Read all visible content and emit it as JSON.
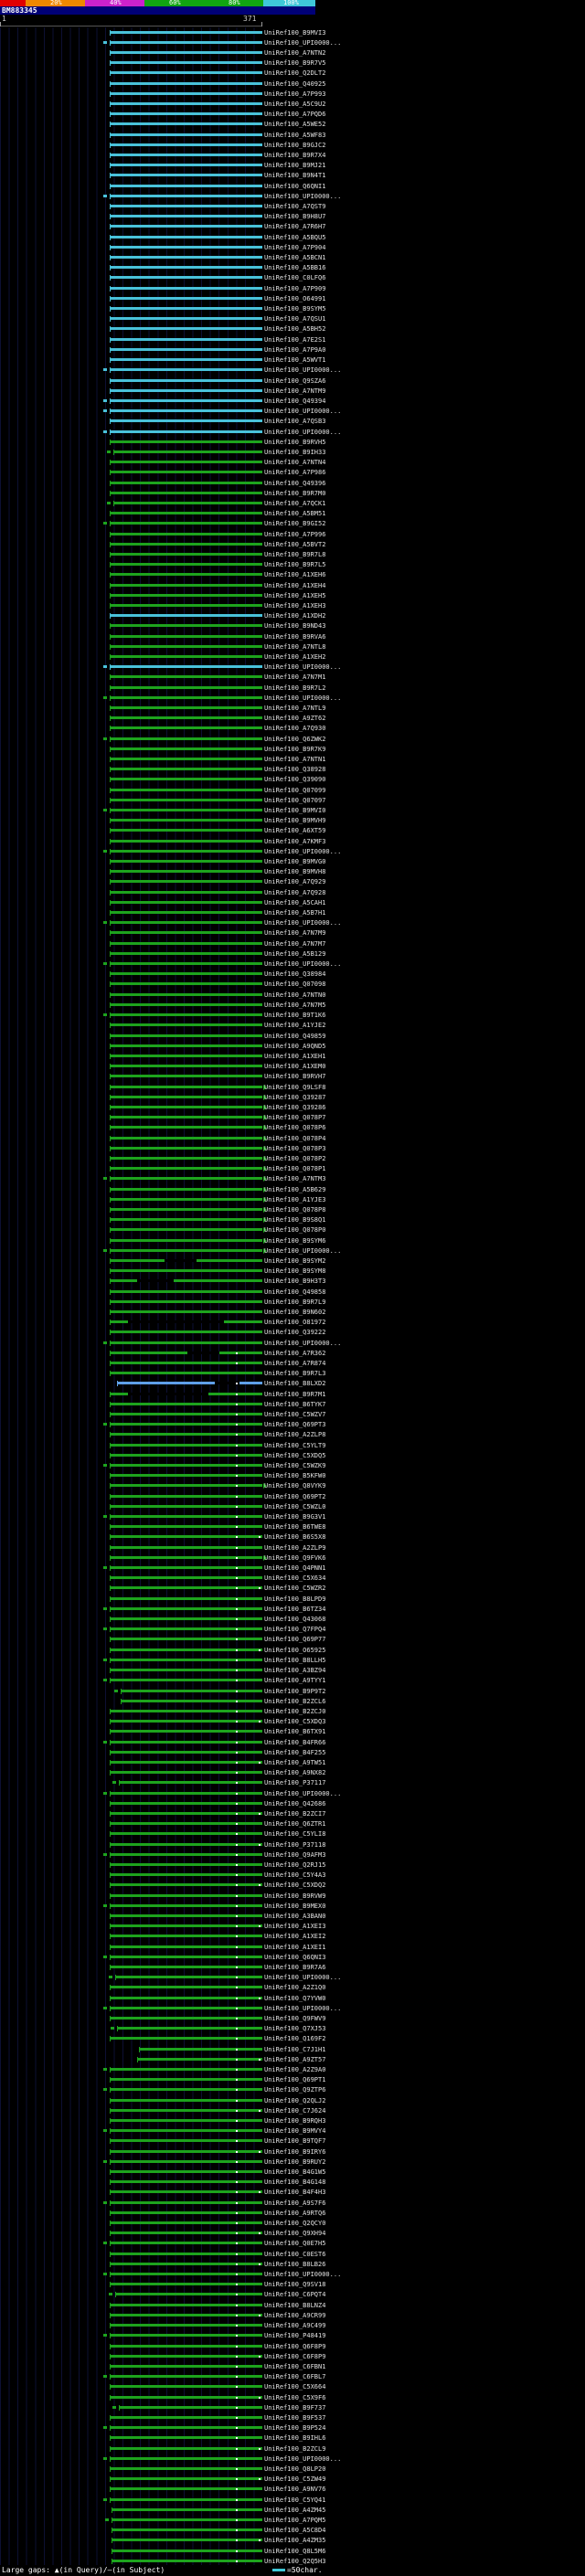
{
  "scalebar": {
    "labels": [
      "20%",
      "40%",
      "60%",
      "80%",
      "100%"
    ],
    "label_positions": [
      55,
      120,
      185,
      250,
      310
    ],
    "segments": [
      {
        "range": "0-20",
        "color": "#e10000",
        "w": 28
      },
      {
        "range": "20-40",
        "color": "#ef8800",
        "w": 65
      },
      {
        "range": "40-60",
        "color": "#cc22cc",
        "w": 65
      },
      {
        "range": "60-80",
        "color": "#11a511",
        "w": 130
      },
      {
        "range": "80-100",
        "color": "#3fc8d8",
        "w": 57
      }
    ]
  },
  "query": {
    "id": "BM883345",
    "band_color": "#000077"
  },
  "ruler": {
    "start_label": "1",
    "end_label": "371"
  },
  "legend": {
    "gaps_text": "Large gaps: ▲(in Query)/—(in Subject)",
    "scale_text": "=50char.",
    "scale_color": "#3fc8d8"
  },
  "colors": {
    "c": "#49c2da",
    "g": "#1da31d",
    "b": "#5f9fe8"
  },
  "defaults": {
    "start": 120,
    "end": 287,
    "dot1": 258,
    "dot2": 283,
    "row_prefix": "UniRef100_"
  },
  "rows": [
    [
      "B9MVI3",
      "c",
      0
    ],
    [
      "UPI0000...",
      "c",
      1
    ],
    [
      "A7NTN2",
      "c",
      0
    ],
    [
      "B9R7V5",
      "c",
      0
    ],
    [
      "Q2DLT2",
      "c",
      0
    ],
    [
      "Q40925",
      "c",
      0
    ],
    [
      "A7P993",
      "c",
      0
    ],
    [
      "A5C9U2",
      "c",
      0
    ],
    [
      "A7PQD6",
      "c",
      0
    ],
    [
      "A5WE52",
      "c",
      0
    ],
    [
      "A5WF83",
      "c",
      0
    ],
    [
      "B9GJC2",
      "c",
      0
    ],
    [
      "B9R7X4",
      "c",
      0
    ],
    [
      "B9MJ21",
      "c",
      0
    ],
    [
      "B9N4T1",
      "c",
      0
    ],
    [
      "Q6QNI1",
      "c",
      0
    ],
    [
      "UPI0000...",
      "c",
      1
    ],
    [
      "A7QST9",
      "c",
      0
    ],
    [
      "B9H8U7",
      "c",
      0
    ],
    [
      "A7R6H7",
      "c",
      0
    ],
    [
      "A5BQU5",
      "c",
      0
    ],
    [
      "A7P904",
      "c",
      0
    ],
    [
      "A5BCN1",
      "c",
      0
    ],
    [
      "A5BB16",
      "c",
      0
    ],
    [
      "C0LFQ6",
      "c",
      0
    ],
    [
      "A7P909",
      "c",
      0
    ],
    [
      "O64991",
      "c",
      0
    ],
    [
      "B9SYM5",
      "c",
      0
    ],
    [
      "A7QSU1",
      "c",
      0
    ],
    [
      "A5BH52",
      "c",
      0
    ],
    [
      "A7E2S1",
      "c",
      0
    ],
    [
      "A7P9A0",
      "c",
      0
    ],
    [
      "A5WVT1",
      "c",
      0
    ],
    [
      "UPI0000...",
      "c",
      1
    ],
    [
      "Q9SZA6",
      "c",
      0
    ],
    [
      "A7NTM9",
      "c",
      0
    ],
    [
      "Q49394",
      "c",
      1
    ],
    [
      "UPI0000...",
      "c",
      1
    ],
    [
      "A7QSB3",
      "c",
      0
    ],
    [
      "UPI0000...",
      "c",
      1
    ],
    [
      "B9RVH5",
      "g",
      0
    ],
    [
      "B9IH33",
      "g",
      1,
      124
    ],
    [
      "A7NTN4",
      "g",
      0
    ],
    [
      "A7P986",
      "g",
      0
    ],
    [
      "Q49396",
      "g",
      0
    ],
    [
      "B9R7M0",
      "g",
      0
    ],
    [
      "A7QCK1",
      "g",
      1,
      124
    ],
    [
      "A5BM51",
      "g",
      0
    ],
    [
      "B9GI52",
      "g",
      1
    ],
    [
      "A7P996",
      "g",
      0
    ],
    [
      "A5BVT2",
      "g",
      0
    ],
    [
      "B9R7L8",
      "g",
      0
    ],
    [
      "B9R7L5",
      "g",
      0
    ],
    [
      "A1XEH6",
      "g",
      0
    ],
    [
      "A1XEH4",
      "g",
      0
    ],
    [
      "A1XEH5",
      "g",
      0
    ],
    [
      "A1XEH3",
      "g",
      0
    ],
    [
      "A1XDH2",
      "c",
      0
    ],
    [
      "B9ND43",
      "g",
      0
    ],
    [
      "B9RVA6",
      "g",
      0
    ],
    [
      "A7NTL8",
      "g",
      0
    ],
    [
      "A1XEH2",
      "g",
      0
    ],
    [
      "UPI0000...",
      "c",
      1
    ],
    [
      "A7N7M1",
      "g",
      0
    ],
    [
      "B9R7L2",
      "g",
      0
    ],
    [
      "UPI0000...",
      "g",
      1
    ],
    [
      "A7NTL9",
      "g",
      0
    ],
    [
      "A9ZT62",
      "g",
      0
    ],
    [
      "A7Q930",
      "g",
      0
    ],
    [
      "Q6ZWK2",
      "g",
      1
    ],
    [
      "B9R7K9",
      "g",
      0
    ],
    [
      "A7NTN1",
      "g",
      0
    ],
    [
      "Q38928",
      "g",
      0
    ],
    [
      "Q39090",
      "g",
      0
    ],
    [
      "Q07099",
      "g",
      0
    ],
    [
      "Q07097",
      "g",
      0
    ],
    [
      "B9MVI0",
      "g",
      1
    ],
    [
      "B9MVH9",
      "g",
      0
    ],
    [
      "A6XT59",
      "g",
      0
    ],
    [
      "A7KMF3",
      "g",
      0
    ],
    [
      "UPI0000...",
      "g",
      1
    ],
    [
      "B9MVG0",
      "g",
      0
    ],
    [
      "B9MVH8",
      "g",
      0
    ],
    [
      "A7Q929",
      "g",
      0
    ],
    [
      "A7Q928",
      "g",
      0
    ],
    [
      "A5CAH1",
      "g",
      0
    ],
    [
      "A5B7H1",
      "g",
      0
    ],
    [
      "UPI0000...",
      "g",
      1
    ],
    [
      "A7N7M9",
      "g",
      0
    ],
    [
      "A7N7M7",
      "g",
      0
    ],
    [
      "A5B129",
      "g",
      0
    ],
    [
      "UPI0000...",
      "g",
      1
    ],
    [
      "Q38984",
      "g",
      0
    ],
    [
      "Q07098",
      "g",
      0
    ],
    [
      "A7NTN0",
      "g",
      0
    ],
    [
      "A7N7M5",
      "g",
      0
    ],
    [
      "B9T1K6",
      "g",
      1
    ],
    [
      "A1YJE2",
      "g",
      0
    ],
    [
      "Q49859",
      "g",
      0
    ],
    [
      "A9QND5",
      "g",
      0
    ],
    [
      "A1XEH1",
      "g",
      0
    ],
    [
      "A1XEM0",
      "g",
      0
    ],
    [
      "B9RVH7",
      "g",
      0
    ],
    [
      "Q9LSF8",
      "g",
      2
    ],
    [
      "Q39287",
      "g",
      2
    ],
    [
      "Q39286",
      "g",
      2
    ],
    [
      "Q078P7",
      "g",
      2
    ],
    [
      "Q078P6",
      "g",
      2
    ],
    [
      "Q078P4",
      "g",
      2
    ],
    [
      "Q078P3",
      "g",
      2
    ],
    [
      "Q078P2",
      "g",
      2
    ],
    [
      "Q078P1",
      "g",
      2
    ],
    [
      "A7NTM3",
      "g",
      3
    ],
    [
      "A5B629",
      "g",
      2
    ],
    [
      "A1YJE3",
      "g",
      2
    ],
    [
      "Q078P8",
      "g",
      2
    ],
    [
      "B9S8Q1",
      "g",
      2
    ],
    [
      "Q078P0",
      "g",
      2
    ],
    [
      "B9SYM6",
      "g",
      2
    ],
    [
      "UPI0000...",
      "g",
      3
    ],
    [
      "B9SYM2",
      "g",
      0,
      null,
      null,
      [
        180,
        215
      ]
    ],
    [
      "B9SYM8",
      "g",
      0
    ],
    [
      "B9H3T3",
      "g",
      0,
      null,
      null,
      [
        150,
        190
      ]
    ],
    [
      "Q49858",
      "g",
      0
    ],
    [
      "B9R7L9",
      "g",
      0
    ],
    [
      "B9N602",
      "g",
      0
    ],
    [
      "O81972",
      "g",
      0,
      null,
      null,
      [
        140,
        245
      ]
    ],
    [
      "Q39222",
      "g",
      0
    ],
    [
      "UPI0000...",
      "g",
      1
    ],
    [
      "A7R362",
      "g",
      4,
      null,
      null,
      [
        205,
        240
      ]
    ],
    [
      "A7R874",
      "g",
      4
    ],
    [
      "B9R7L3",
      "g",
      0
    ],
    [
      "B8LXD2",
      "b",
      4,
      128,
      null,
      [
        235,
        262
      ]
    ],
    [
      "B9R7M1",
      "g",
      4,
      null,
      null,
      [
        140,
        228
      ]
    ],
    [
      "B6TYK7",
      "g",
      4
    ],
    [
      "C5WZV7",
      "g",
      4
    ],
    [
      "Q69PT3",
      "g",
      5
    ],
    [
      "A2ZLP8",
      "g",
      4
    ],
    [
      "C5YLT9",
      "g",
      4
    ],
    [
      "C5XDQ5",
      "g",
      4
    ],
    [
      "C5WZK9",
      "g",
      5
    ],
    [
      "B5KFW0",
      "g",
      4
    ],
    [
      "Q8VYK9",
      "g",
      6
    ],
    [
      "Q69PT2",
      "g",
      4
    ],
    [
      "C5WZL0",
      "g",
      4
    ],
    [
      "B9G3V1",
      "g",
      5
    ],
    [
      "B6TWE8",
      "g",
      4
    ],
    [
      "B6S5X8",
      "g",
      12
    ],
    [
      "A2ZLP9",
      "g",
      4
    ],
    [
      "Q9FVK6",
      "g",
      6
    ],
    [
      "Q4PNN1",
      "g",
      5
    ],
    [
      "C5X634",
      "g",
      4
    ],
    [
      "C5WZR2",
      "g",
      12
    ],
    [
      "B8LPD9",
      "g",
      4
    ],
    [
      "B6TZ34",
      "g",
      5
    ],
    [
      "Q43068",
      "g",
      4
    ],
    [
      "Q7FPQ4",
      "g",
      5
    ],
    [
      "Q69P77",
      "g",
      4
    ],
    [
      "O65925",
      "g",
      12
    ],
    [
      "B8LLH5",
      "g",
      5
    ],
    [
      "A3BZ94",
      "g",
      4
    ],
    [
      "A9TYY1",
      "g",
      5
    ],
    [
      "B9P9T2",
      "g",
      5,
      132
    ],
    [
      "B2ZCL6",
      "g",
      4,
      132
    ],
    [
      "B2ZCJ0",
      "g",
      4
    ],
    [
      "C5XDQ3",
      "g",
      12
    ],
    [
      "B6TX91",
      "g",
      4
    ],
    [
      "B4FR66",
      "g",
      5
    ],
    [
      "B4F255",
      "g",
      4
    ],
    [
      "A9TW51",
      "g",
      12
    ],
    [
      "A9NX82",
      "g",
      4
    ],
    [
      "P37117",
      "g",
      5,
      130
    ],
    [
      "UPI0000...",
      "g",
      5
    ],
    [
      "Q42686",
      "g",
      4
    ],
    [
      "B2ZCI7",
      "g",
      12
    ],
    [
      "Q6ZTR1",
      "g",
      4
    ],
    [
      "C5YLI8",
      "g",
      4
    ],
    [
      "P37118",
      "g",
      12
    ],
    [
      "Q9AFM3",
      "g",
      5
    ],
    [
      "Q2RJ15",
      "g",
      4
    ],
    [
      "C5Y4A3",
      "g",
      4
    ],
    [
      "C5XDQ2",
      "g",
      12
    ],
    [
      "B9RVW9",
      "g",
      4
    ],
    [
      "B9MEX0",
      "g",
      5
    ],
    [
      "A3BAN0",
      "g",
      4
    ],
    [
      "A1XEI3",
      "g",
      12
    ],
    [
      "A1XEI2",
      "g",
      4
    ],
    [
      "A1XEI1",
      "g",
      4
    ],
    [
      "Q6QNI3",
      "g",
      5
    ],
    [
      "B9R7A6",
      "g",
      4
    ],
    [
      "UPI0000...",
      "g",
      5,
      126
    ],
    [
      "A2Z1Q0",
      "g",
      4
    ],
    [
      "Q7YVW0",
      "g",
      12
    ],
    [
      "UPI0000...",
      "g",
      5
    ],
    [
      "Q9FWV9",
      "g",
      4
    ],
    [
      "Q7XJ53",
      "g",
      5,
      128
    ],
    [
      "Q169F2",
      "g",
      4
    ],
    [
      "C7J1H1",
      "g",
      4,
      152
    ],
    [
      "A9ZT57",
      "g",
      12,
      150
    ],
    [
      "A2Z9A0",
      "g",
      5
    ],
    [
      "Q69PT1",
      "g",
      4
    ],
    [
      "Q9ZTP6",
      "g",
      5
    ],
    [
      "Q2QLJ2",
      "g",
      4
    ],
    [
      "C7J624",
      "g",
      12
    ],
    [
      "B9RQH3",
      "g",
      4
    ],
    [
      "B9MVY4",
      "g",
      5
    ],
    [
      "B9TQF7",
      "g",
      4
    ],
    [
      "B9IRY6",
      "g",
      12
    ],
    [
      "B9RUY2",
      "g",
      5
    ],
    [
      "B4G1W5",
      "g",
      4
    ],
    [
      "B4G148",
      "g",
      4
    ],
    [
      "B4F4H3",
      "g",
      12
    ],
    [
      "A9S7F6",
      "g",
      5
    ],
    [
      "A9RTQ6",
      "g",
      4
    ],
    [
      "Q2QCY0",
      "g",
      4
    ],
    [
      "Q9XH94",
      "g",
      12
    ],
    [
      "Q0E7H5",
      "g",
      5
    ],
    [
      "C0EST6",
      "g",
      4
    ],
    [
      "B8LB26",
      "g",
      12
    ],
    [
      "UPI0000...",
      "g",
      5
    ],
    [
      "Q9SV18",
      "g",
      4
    ],
    [
      "C6PQT4",
      "g",
      5,
      126
    ],
    [
      "B8LNZ4",
      "g",
      4
    ],
    [
      "A9CR99",
      "g",
      12
    ],
    [
      "A9C499",
      "g",
      4
    ],
    [
      "P48419",
      "g",
      5
    ],
    [
      "Q6F8P9",
      "g",
      4
    ],
    [
      "C6F8P9",
      "g",
      12
    ],
    [
      "C6FBN1",
      "g",
      4
    ],
    [
      "C6FBL7",
      "g",
      5
    ],
    [
      "C5X664",
      "g",
      4
    ],
    [
      "C5X9F6",
      "g",
      12
    ],
    [
      "B9F737",
      "g",
      5,
      130
    ],
    [
      "B9F537",
      "g",
      4
    ],
    [
      "B9P524",
      "g",
      5
    ],
    [
      "B9IHL6",
      "g",
      4
    ],
    [
      "B2ZCL9",
      "g",
      12
    ],
    [
      "UPI0000...",
      "g",
      5
    ],
    [
      "Q8LP20",
      "g",
      4
    ],
    [
      "C5ZW49",
      "g",
      12
    ],
    [
      "A9NV76",
      "g",
      4
    ],
    [
      "C5YQ41",
      "g",
      5
    ],
    [
      "A4ZM45",
      "g",
      4,
      122
    ],
    [
      "A7PQM5",
      "g",
      5,
      122
    ],
    [
      "A5C8D4",
      "g",
      4,
      122
    ],
    [
      "A4ZM35",
      "g",
      12,
      122
    ],
    [
      "Q8L5M6",
      "g",
      4,
      122
    ],
    [
      "Q2Q5H3",
      "g",
      4,
      122
    ]
  ]
}
